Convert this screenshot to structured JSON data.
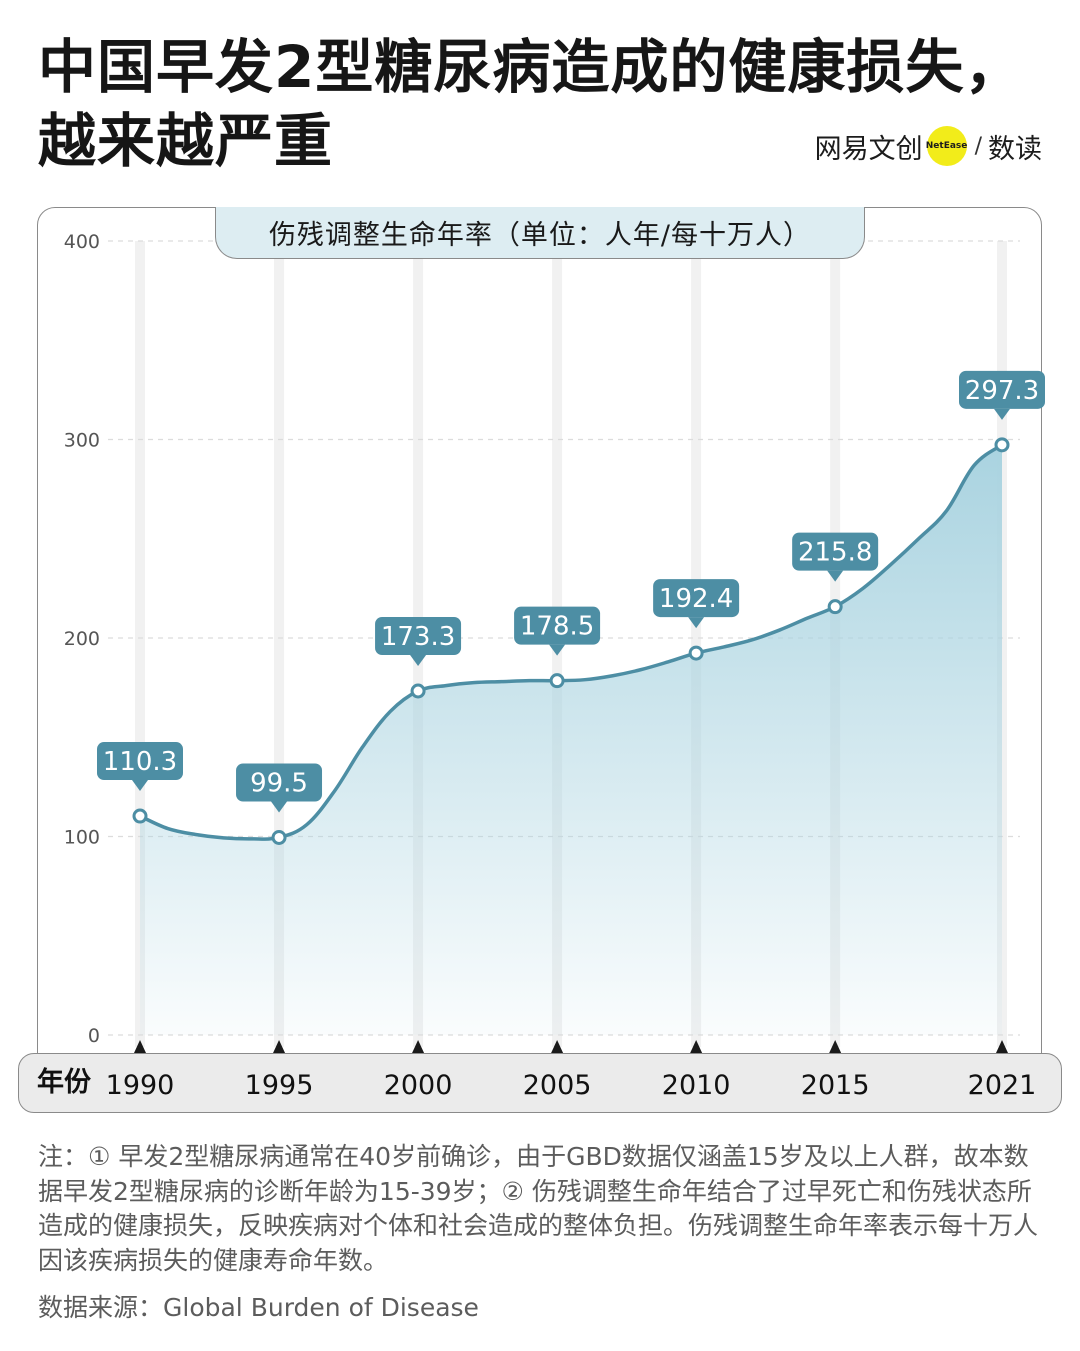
{
  "title_lines": [
    "中国早发2型糖尿病造成的健康损失，",
    "越来越严重"
  ],
  "brand": {
    "name": "网易文创",
    "badge": "NetEase",
    "slash": "/",
    "column": "数读",
    "badge_color": "#f2ec1a"
  },
  "chart_data": {
    "type": "area",
    "title": "伤残调整生命年率（单位：人年/每十万人）",
    "xlabel": "年份",
    "ylabel": "",
    "x_ticks": [
      "1990",
      "1995",
      "2000",
      "2005",
      "2010",
      "2015",
      "2021"
    ],
    "y_ticks": [
      "0",
      "100",
      "200",
      "300",
      "400"
    ],
    "ylim": [
      0,
      400
    ],
    "xlim": [
      1990,
      2021
    ],
    "series": [
      {
        "x": [
          1990,
          1991,
          1992,
          1993,
          1994,
          1995,
          1996,
          1997,
          1998,
          1999,
          2000,
          2001,
          2002,
          2003,
          2004,
          2005,
          2006,
          2007,
          2008,
          2009,
          2010,
          2011,
          2012,
          2013,
          2014,
          2015,
          2016,
          2017,
          2018,
          2019,
          2020,
          2021
        ],
        "y": [
          110.3,
          104,
          101,
          99.3,
          98.8,
          99.5,
          106,
          123,
          145,
          163,
          173.3,
          176,
          177.5,
          178,
          178.5,
          178.5,
          179,
          181,
          184,
          188,
          192.4,
          195.5,
          199,
          204,
          210,
          215.8,
          225,
          237,
          250,
          264,
          287,
          297.3
        ]
      }
    ],
    "data_labels": [
      {
        "x": 1990,
        "y": 110.3,
        "text": "110.3"
      },
      {
        "x": 1995,
        "y": 99.5,
        "text": "99.5"
      },
      {
        "x": 2000,
        "y": 173.3,
        "text": "173.3"
      },
      {
        "x": 2005,
        "y": 178.5,
        "text": "178.5"
      },
      {
        "x": 2010,
        "y": 192.4,
        "text": "192.4"
      },
      {
        "x": 2015,
        "y": 215.8,
        "text": "215.8"
      },
      {
        "x": 2021,
        "y": 297.3,
        "text": "297.3"
      }
    ],
    "grid": true,
    "colors": {
      "line": "#4d8ea4",
      "fill": "#a9d3e0",
      "label_bg": "#4d8ea4",
      "label_text": "#ffffff",
      "guide": "#f1f1f1",
      "grid": "#dcdcdc"
    }
  },
  "note": "注：① 早发2型糖尿病通常在40岁前确诊，由于GBD数据仅涵盖15岁及以上人群，故本数据早发2型糖尿病的诊断年龄为15-39岁；② 伤残调整生命年结合了过早死亡和伤残状态所造成的健康损失，反映疾病对个体和社会造成的整体负担。伤残调整生命年率表示每十万人因该疾病损失的健康寿命年数。",
  "source": "数据来源：Global Burden of Disease"
}
